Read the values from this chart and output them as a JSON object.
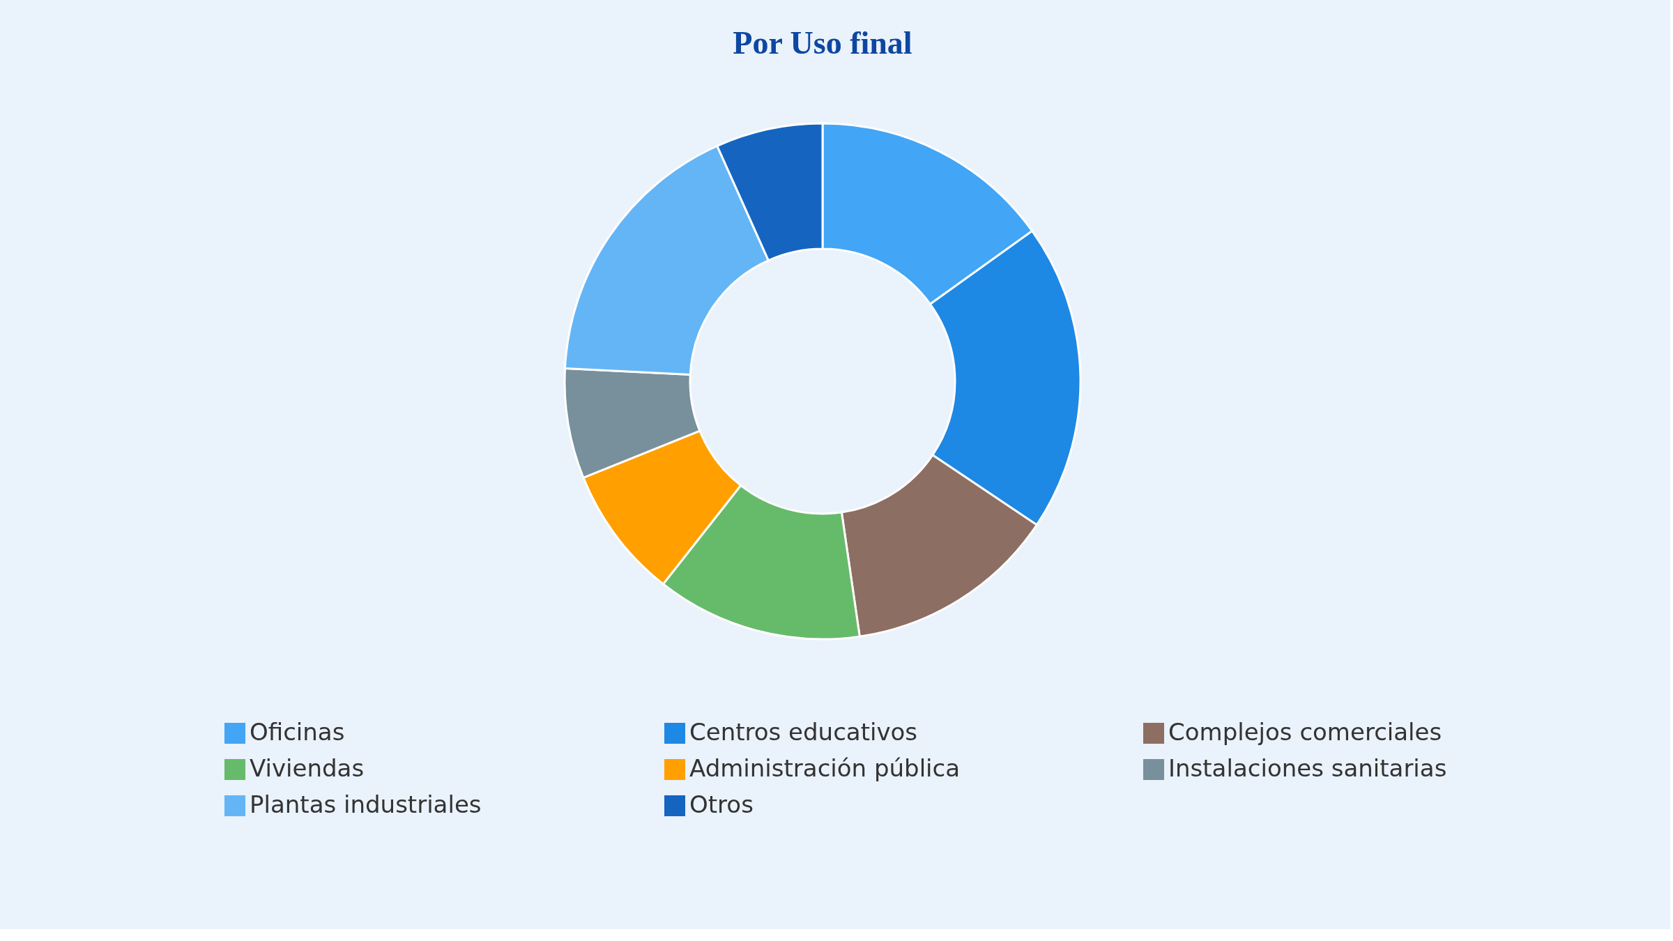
{
  "chart_data": {
    "type": "donut",
    "title": "Por Uso final",
    "categories": [
      "Oficinas",
      "Centros educativos",
      "Complejos comerciales",
      "Viviendas",
      "Administración pública",
      "Instalaciones sanitarias",
      "Plantas industriales",
      "Otros"
    ],
    "values": [
      15.1,
      19.3,
      13.3,
      12.9,
      8.3,
      6.9,
      17.5,
      6.7
    ],
    "colors": [
      "#42a5f5",
      "#1e88e5",
      "#8d6e63",
      "#66bb6a",
      "#ffa000",
      "#78909c",
      "#64b5f6",
      "#1565c0"
    ],
    "legend": "bottom"
  }
}
